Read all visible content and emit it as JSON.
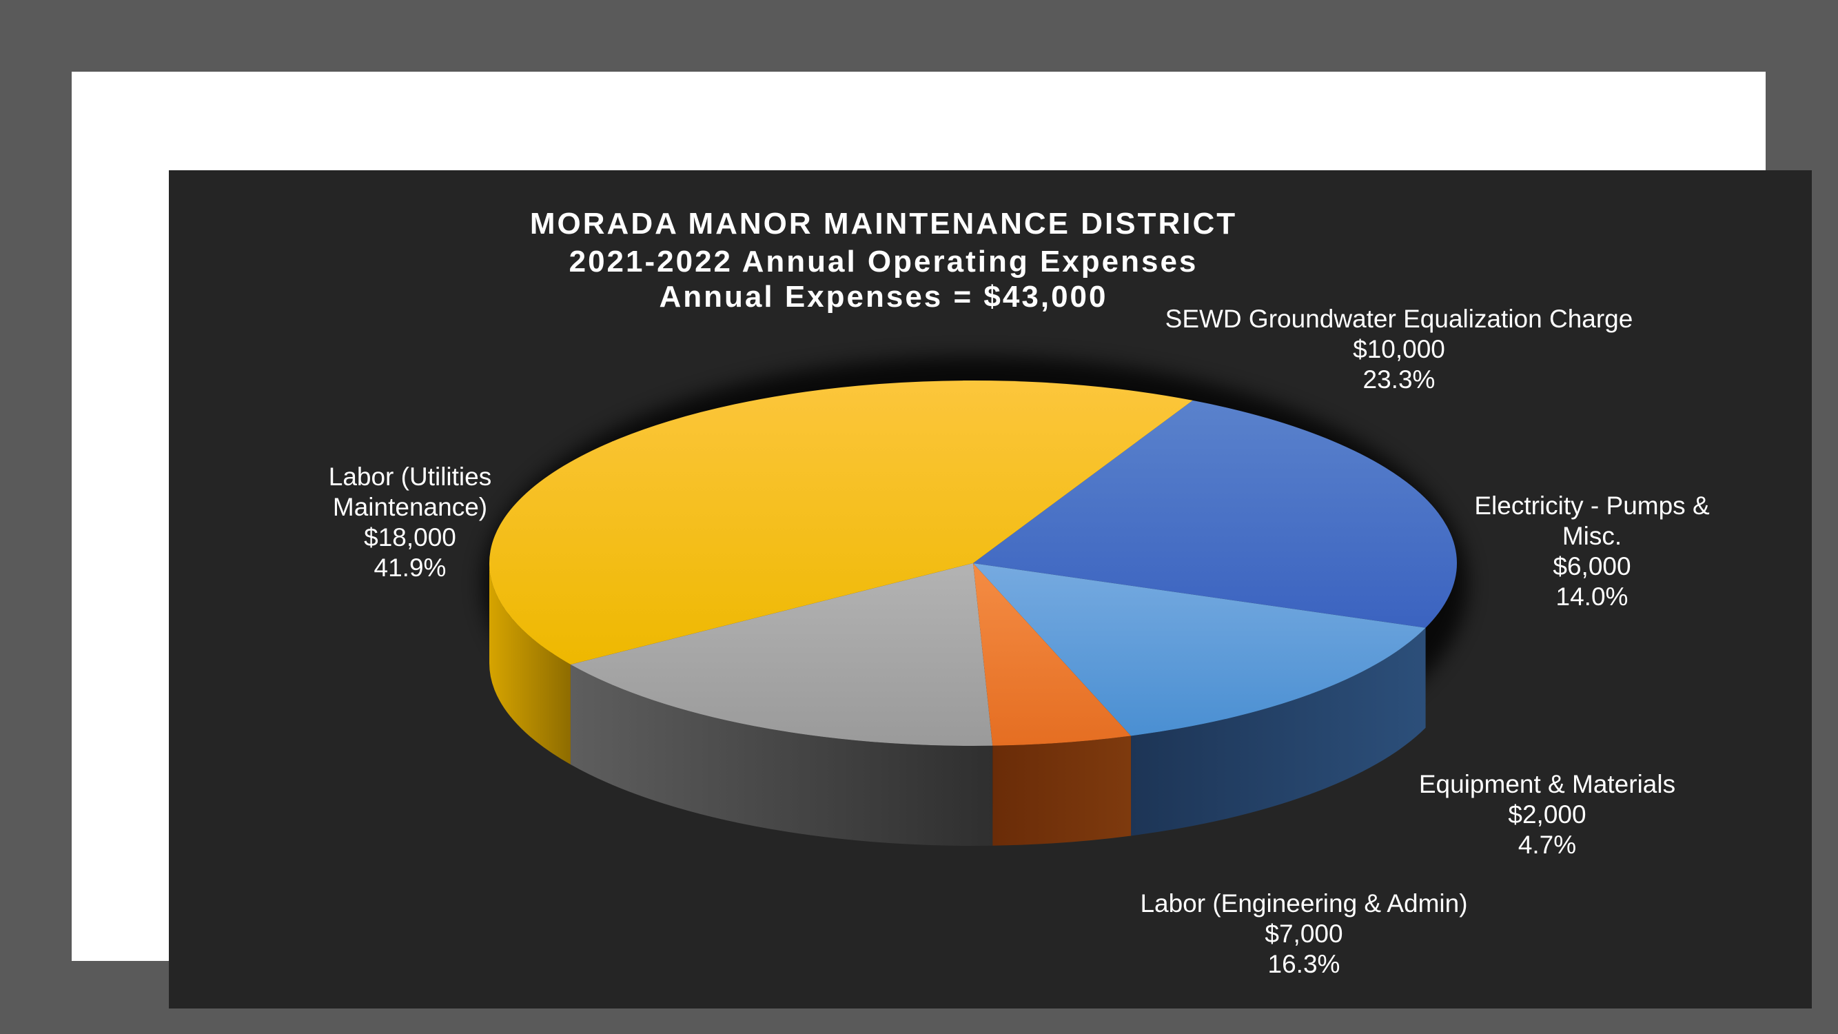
{
  "chart_data": {
    "type": "pie",
    "title": [
      "MORADA MANOR MAINTENANCE DISTRICT",
      "2021-2022 Annual Operating Expenses",
      "Annual Expenses = $43,000"
    ],
    "three_d": true,
    "slices": [
      {
        "category": "SEWD Groundwater Equalization Charge",
        "value": 10000,
        "value_label": "$10,000",
        "percent": 23.3,
        "percent_label": "23.3%",
        "label_lines": [
          "SEWD Groundwater Equalization Charge"
        ],
        "color": "#4472c4"
      },
      {
        "category": "Electricity - Pumps & Misc.",
        "value": 6000,
        "value_label": "$6,000",
        "percent": 14.0,
        "percent_label": "14.0%",
        "label_lines": [
          "Electricity - Pumps &",
          "Misc."
        ],
        "color": "#5b9bd5"
      },
      {
        "category": "Equipment & Materials",
        "value": 2000,
        "value_label": "$2,000",
        "percent": 4.7,
        "percent_label": "4.7%",
        "label_lines": [
          "Equipment & Materials"
        ],
        "color": "#ed7d31"
      },
      {
        "category": "Labor (Engineering & Admin)",
        "value": 7000,
        "value_label": "$7,000",
        "percent": 16.3,
        "percent_label": "16.3%",
        "label_lines": [
          "Labor (Engineering & Admin)"
        ],
        "color": "#a5a5a5"
      },
      {
        "category": "Labor (Utilities Maintenance)",
        "value": 18000,
        "value_label": "$18,000",
        "percent": 41.9,
        "percent_label": "41.9%",
        "label_lines": [
          "Labor (Utilities",
          "Maintenance)"
        ],
        "color": "#ffc000"
      }
    ]
  }
}
